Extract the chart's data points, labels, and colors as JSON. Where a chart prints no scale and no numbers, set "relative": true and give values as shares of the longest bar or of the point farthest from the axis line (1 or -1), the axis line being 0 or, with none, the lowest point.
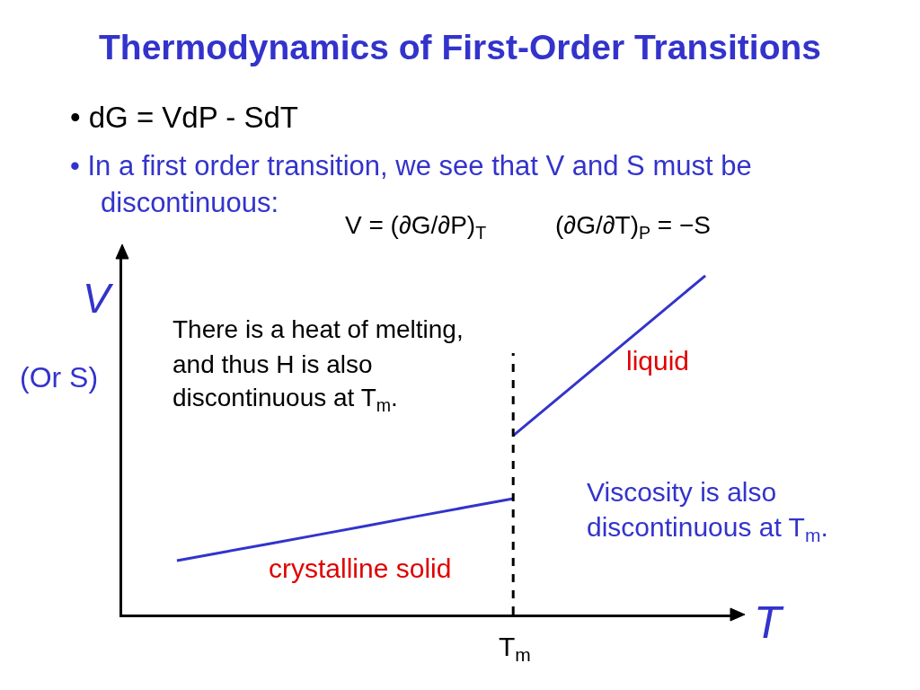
{
  "chart_data": {
    "type": "line",
    "title": "Thermodynamics of First-Order Transitions",
    "xlabel": "T",
    "ylabel": "V\n(Or S)",
    "relative": true,
    "line_style": "solid",
    "categories": [
      null,
      null,
      null,
      null,
      null,
      null,
      null,
      null,
      null,
      null,
      null,
      null
    ],
    "series": [
      {
        "name": "crystalline solid",
        "color": "#3333cc",
        "values": [
          0.159,
          0.185,
          0.211,
          0.237,
          0.263,
          0.29,
          0.316,
          0.342,
          null,
          null,
          null,
          null
        ]
      },
      {
        "name": "liquid",
        "color": "#3333cc",
        "values": [
          null,
          null,
          null,
          null,
          null,
          null,
          null,
          0.528,
          0.646,
          0.764,
          0.882,
          1.0
        ]
      }
    ],
    "annotations": [
      "• dG = VdP - SdT",
      "• In a first order transition, we see that V and S must be\ndiscontinuous:",
      "V = (∂G/∂P)$_{T}$",
      "(∂G/∂T)$_{P}$ = −S",
      "There is a heat of melting,\nand thus H is also\ndiscontinuous at T$_{m}$.",
      "Viscosity is also\ndiscontinuous at T$_{m}$.",
      "T$_{m}$"
    ]
  }
}
